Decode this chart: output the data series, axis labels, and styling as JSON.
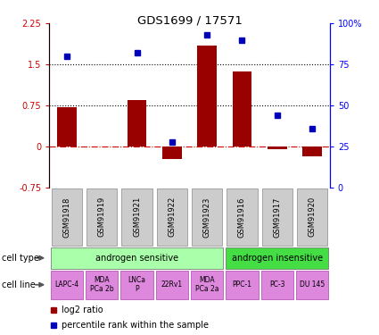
{
  "title": "GDS1699 / 17571",
  "samples": [
    "GSM91918",
    "GSM91919",
    "GSM91921",
    "GSM91922",
    "GSM91923",
    "GSM91916",
    "GSM91917",
    "GSM91920"
  ],
  "log2_ratio": [
    0.72,
    0.0,
    0.85,
    -0.22,
    1.85,
    1.38,
    -0.05,
    -0.18
  ],
  "percentile_rank": [
    80,
    null,
    82,
    28,
    93,
    90,
    44,
    36
  ],
  "cell_type_groups": [
    {
      "label": "androgen sensitive",
      "start": 0,
      "end": 5,
      "color": "#AAFFAA"
    },
    {
      "label": "androgen insensitive",
      "start": 5,
      "end": 8,
      "color": "#44DD44"
    }
  ],
  "cell_lines": [
    {
      "label": "LAPC-4",
      "start": 0,
      "end": 1
    },
    {
      "label": "MDA\nPCa 2b",
      "start": 1,
      "end": 2
    },
    {
      "label": "LNCa\nP",
      "start": 2,
      "end": 3
    },
    {
      "label": "22Rv1",
      "start": 3,
      "end": 4
    },
    {
      "label": "MDA\nPCa 2a",
      "start": 4,
      "end": 5
    },
    {
      "label": "PPC-1",
      "start": 5,
      "end": 6
    },
    {
      "label": "PC-3",
      "start": 6,
      "end": 7
    },
    {
      "label": "DU 145",
      "start": 7,
      "end": 8
    }
  ],
  "cell_line_color": "#DD88DD",
  "bar_color": "#990000",
  "dot_color": "#0000BB",
  "ylim_left": [
    -0.75,
    2.25
  ],
  "yticks_left": [
    -0.75,
    0.0,
    0.75,
    1.5,
    2.25
  ],
  "ylim_right": [
    0,
    100
  ],
  "yticks_right": [
    0,
    25,
    50,
    75,
    100
  ],
  "hline_y_left": [
    0.0,
    0.75,
    1.5
  ],
  "hline_styles": [
    "dashdot",
    "dotted",
    "dotted"
  ],
  "hline_colors": [
    "#CC0000",
    "black",
    "black"
  ],
  "gsm_box_color": "#CCCCCC",
  "gsm_box_border": "#888888"
}
